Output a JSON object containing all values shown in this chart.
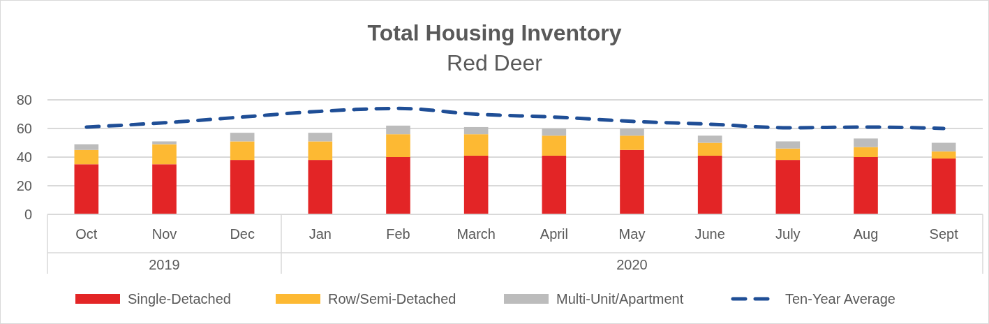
{
  "chart_data": {
    "type": "bar",
    "title": "Total Housing Inventory",
    "subtitle": "Red Deer",
    "categories": [
      "Oct",
      "Nov",
      "Dec",
      "Jan",
      "Feb",
      "March",
      "April",
      "May",
      "June",
      "July",
      "Aug",
      "Sept"
    ],
    "stacked": true,
    "ylim": [
      0,
      80
    ],
    "yticks": [
      0,
      20,
      40,
      60,
      80
    ],
    "grid": "y",
    "legend": "bottom",
    "annotations": [
      "2019",
      "2020"
    ],
    "series": [
      {
        "name": "Single-Detached",
        "color": "#e32526",
        "values": [
          35,
          35,
          38,
          38,
          40,
          41,
          41,
          45,
          41,
          38,
          40,
          39
        ]
      },
      {
        "name": "Row/Semi-Detached",
        "color": "#fdb933",
        "values": [
          10,
          14,
          13,
          13,
          16,
          15,
          14,
          10,
          9,
          8,
          7,
          5
        ]
      },
      {
        "name": "Multi-Unit/Apartment",
        "color": "#bcbcbc",
        "values": [
          4,
          2,
          6,
          6,
          6,
          5,
          5,
          5,
          5,
          5,
          6,
          6
        ]
      },
      {
        "name": "Ten-Year Average",
        "type": "line",
        "color": "#1f4e96",
        "line_style": "dashed",
        "marker": "none",
        "values": [
          61,
          64,
          68,
          72,
          74,
          70,
          68,
          65,
          63,
          60.5,
          61,
          60
        ]
      }
    ]
  }
}
